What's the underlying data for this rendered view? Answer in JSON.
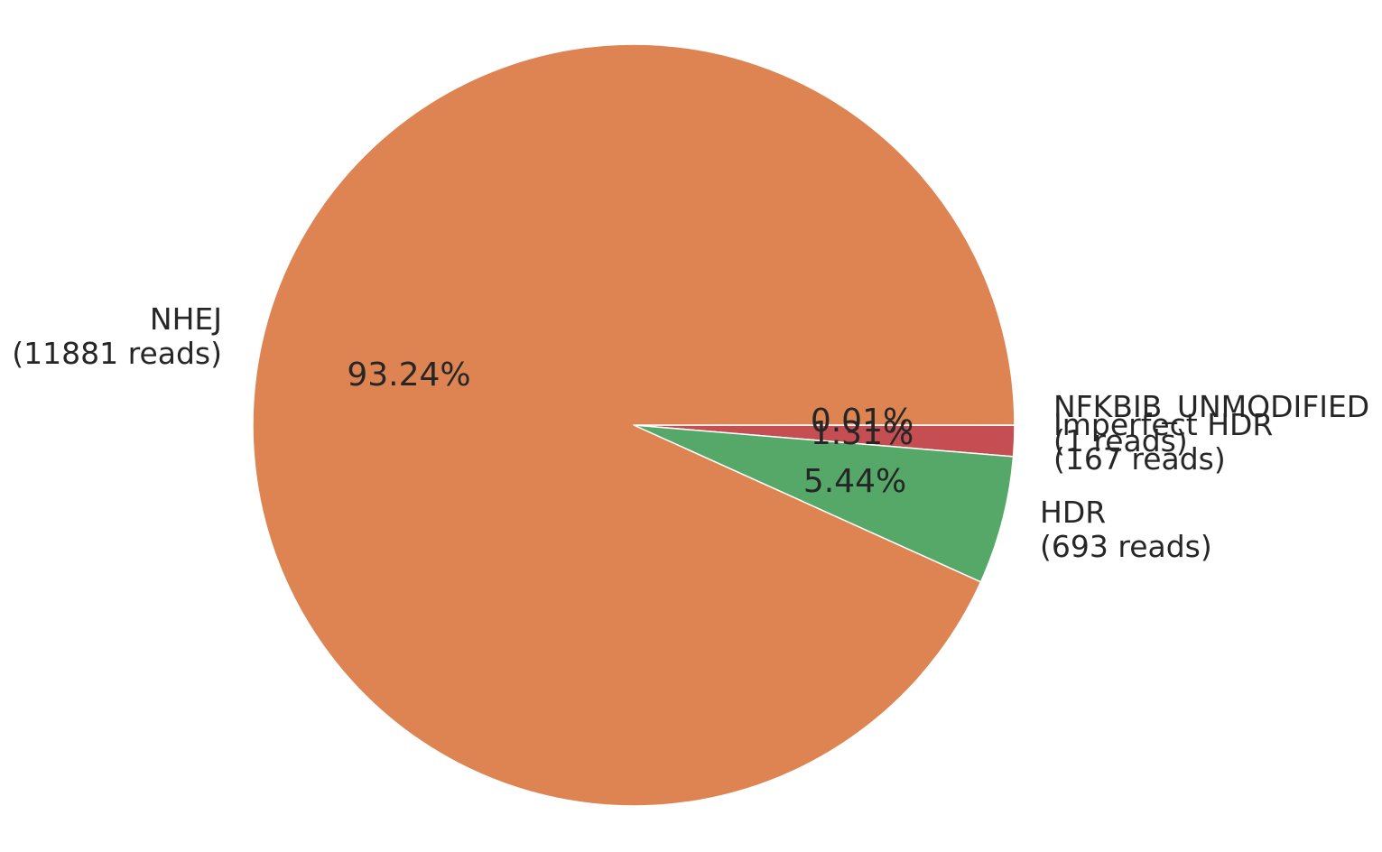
{
  "chart_data": {
    "type": "pie",
    "title": "",
    "start_angle_deg": 0,
    "direction": "clockwise",
    "slices": [
      {
        "label": "NFKBIB_UNMODIFIED",
        "reads_label": "(1 reads)",
        "reads": 1,
        "percent": 0.01,
        "percent_label": "0.01%",
        "color": "#4c72b0"
      },
      {
        "label": "Imperfect HDR",
        "reads_label": "(167 reads)",
        "reads": 167,
        "percent": 1.31,
        "percent_label": "1.31%",
        "color": "#c44e52"
      },
      {
        "label": "HDR",
        "reads_label": "(693 reads)",
        "reads": 693,
        "percent": 5.44,
        "percent_label": "5.44%",
        "color": "#55a868"
      },
      {
        "label": "NHEJ",
        "reads_label": "(11881 reads)",
        "reads": 11881,
        "percent": 93.24,
        "percent_label": "93.24%",
        "color": "#dd8452"
      }
    ],
    "edge_color": "#ffffff",
    "text_color": "#262626"
  }
}
